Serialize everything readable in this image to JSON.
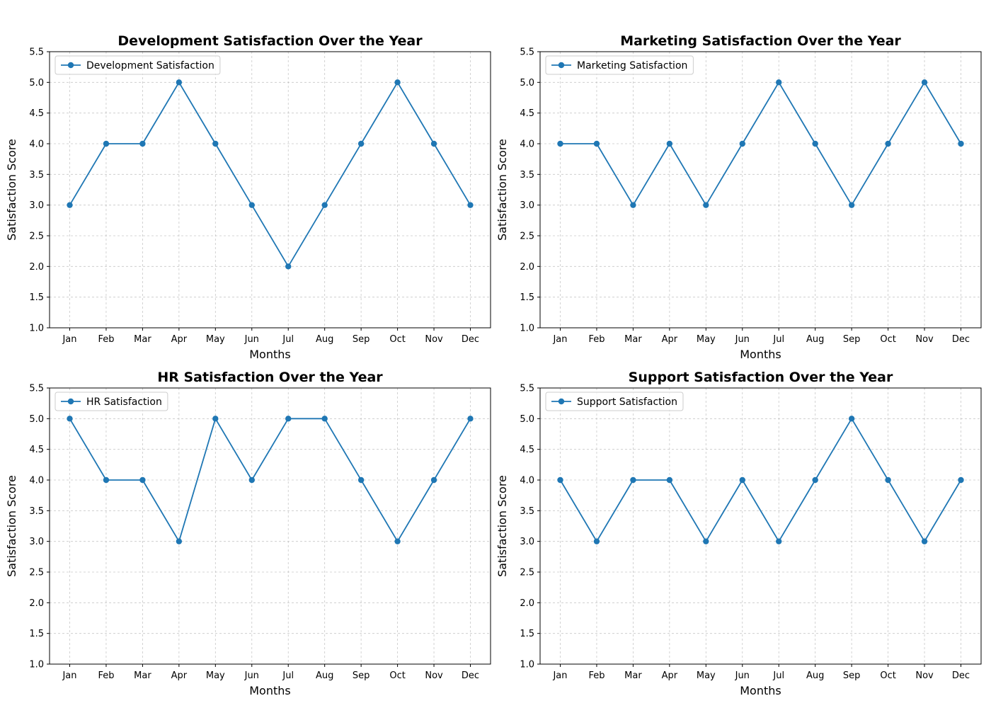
{
  "chart_data": [
    {
      "type": "line",
      "title": "Development Satisfaction Over the Year",
      "xlabel": "Months",
      "ylabel": "Satisfaction Score",
      "ylim": [
        1.0,
        5.5
      ],
      "yticks": [
        "1.0",
        "1.5",
        "2.0",
        "2.5",
        "3.0",
        "3.5",
        "4.0",
        "4.5",
        "5.0",
        "5.5"
      ],
      "categories": [
        "Jan",
        "Feb",
        "Mar",
        "Apr",
        "May",
        "Jun",
        "Jul",
        "Aug",
        "Sep",
        "Oct",
        "Nov",
        "Dec"
      ],
      "grid": true,
      "legend_position": "upper-left",
      "series": [
        {
          "name": "Development Satisfaction",
          "color": "#1f77b4",
          "values": [
            3,
            4,
            4,
            5,
            4,
            3,
            2,
            3,
            4,
            5,
            4,
            3
          ]
        }
      ]
    },
    {
      "type": "line",
      "title": "Marketing Satisfaction Over the Year",
      "xlabel": "Months",
      "ylabel": "Satisfaction Score",
      "ylim": [
        1.0,
        5.5
      ],
      "yticks": [
        "1.0",
        "1.5",
        "2.0",
        "2.5",
        "3.0",
        "3.5",
        "4.0",
        "4.5",
        "5.0",
        "5.5"
      ],
      "categories": [
        "Jan",
        "Feb",
        "Mar",
        "Apr",
        "May",
        "Jun",
        "Jul",
        "Aug",
        "Sep",
        "Oct",
        "Nov",
        "Dec"
      ],
      "grid": true,
      "legend_position": "upper-left",
      "series": [
        {
          "name": "Marketing Satisfaction",
          "color": "#1f77b4",
          "values": [
            4,
            4,
            3,
            4,
            3,
            4,
            5,
            4,
            3,
            4,
            5,
            4
          ]
        }
      ]
    },
    {
      "type": "line",
      "title": "HR Satisfaction Over the Year",
      "xlabel": "Months",
      "ylabel": "Satisfaction Score",
      "ylim": [
        1.0,
        5.5
      ],
      "yticks": [
        "1.0",
        "1.5",
        "2.0",
        "2.5",
        "3.0",
        "3.5",
        "4.0",
        "4.5",
        "5.0",
        "5.5"
      ],
      "categories": [
        "Jan",
        "Feb",
        "Mar",
        "Apr",
        "May",
        "Jun",
        "Jul",
        "Aug",
        "Sep",
        "Oct",
        "Nov",
        "Dec"
      ],
      "grid": true,
      "legend_position": "upper-left",
      "series": [
        {
          "name": "HR Satisfaction",
          "color": "#1f77b4",
          "values": [
            5,
            4,
            4,
            3,
            5,
            4,
            5,
            5,
            4,
            3,
            4,
            5
          ]
        }
      ]
    },
    {
      "type": "line",
      "title": "Support Satisfaction Over the Year",
      "xlabel": "Months",
      "ylabel": "Satisfaction Score",
      "ylim": [
        1.0,
        5.5
      ],
      "yticks": [
        "1.0",
        "1.5",
        "2.0",
        "2.5",
        "3.0",
        "3.5",
        "4.0",
        "4.5",
        "5.0",
        "5.5"
      ],
      "categories": [
        "Jan",
        "Feb",
        "Mar",
        "Apr",
        "May",
        "Jun",
        "Jul",
        "Aug",
        "Sep",
        "Oct",
        "Nov",
        "Dec"
      ],
      "grid": true,
      "legend_position": "upper-left",
      "series": [
        {
          "name": "Support Satisfaction",
          "color": "#1f77b4",
          "values": [
            4,
            3,
            4,
            4,
            3,
            4,
            3,
            4,
            5,
            4,
            3,
            4
          ]
        }
      ]
    }
  ]
}
